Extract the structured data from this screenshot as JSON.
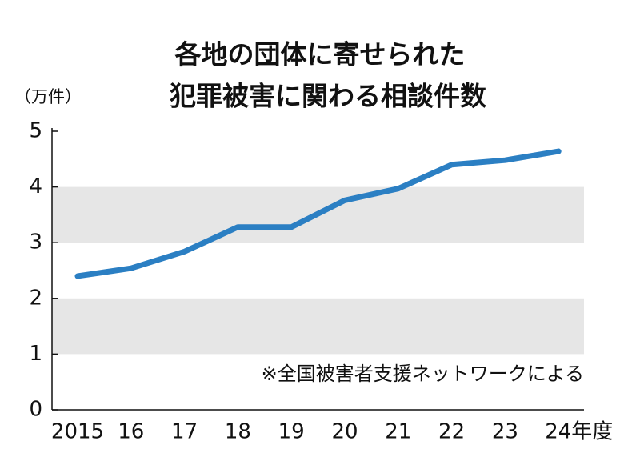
{
  "chart_data": {
    "type": "line",
    "title": [
      "各地の団体に寄せられた",
      "犯罪被害に関わる相談件数"
    ],
    "y_label": "（万件）",
    "annotation": "※全国被害者支援ネットワークによる",
    "categories": [
      "2015",
      "16",
      "17",
      "18",
      "19",
      "20",
      "21",
      "22",
      "23",
      "24年度"
    ],
    "values": [
      2.4,
      2.54,
      2.84,
      3.28,
      3.28,
      3.76,
      3.97,
      4.4,
      4.48,
      4.64
    ],
    "color": "#2b7fc3",
    "ylim": [
      0,
      5
    ],
    "yticks": [
      0,
      1,
      2,
      3,
      4,
      5
    ],
    "bands": true
  }
}
